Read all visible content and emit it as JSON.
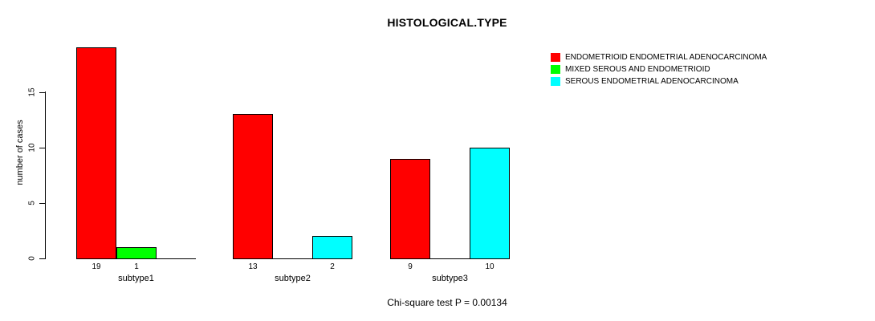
{
  "chart_data": {
    "type": "bar",
    "title": "HISTOLOGICAL.TYPE",
    "ylabel": "number of cases",
    "xlabel": "",
    "annotation": "Chi-square test P = 0.00134",
    "categories": [
      "subtype1",
      "subtype2",
      "subtype3"
    ],
    "series": [
      {
        "name": "ENDOMETRIOID ENDOMETRIAL ADENOCARCINOMA",
        "color": "#ff0000",
        "values": [
          19,
          13,
          9
        ]
      },
      {
        "name": "MIXED SEROUS AND ENDOMETRIOID",
        "color": "#00ff00",
        "values": [
          1,
          0,
          0
        ]
      },
      {
        "name": "SEROUS ENDOMETRIAL ADENOCARCINOMA",
        "color": "#00ffff",
        "values": [
          0,
          2,
          10
        ]
      }
    ],
    "yticks": [
      0,
      5,
      10,
      15
    ],
    "ylim": [
      0,
      19
    ],
    "grid": false,
    "legend_position": "top-right",
    "bar_value_labels": [
      [
        "19",
        "1",
        ""
      ],
      [
        "13",
        "",
        "2"
      ],
      [
        "9",
        "",
        "10"
      ]
    ]
  }
}
